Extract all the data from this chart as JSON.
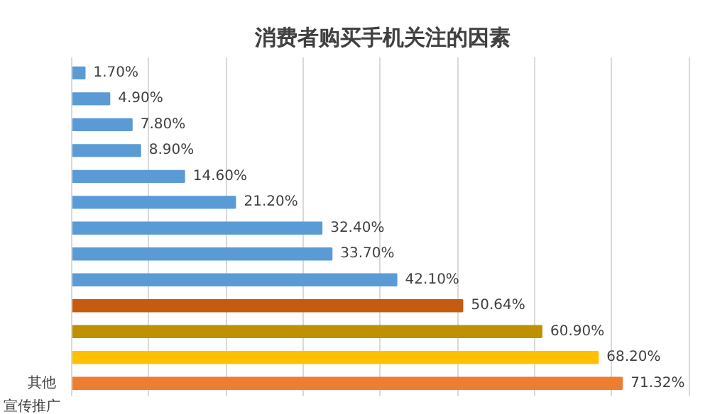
{
  "chart_data": {
    "type": "bar",
    "orientation": "horizontal",
    "title": "消费者购买手机关注的因素",
    "categories": [
      null,
      null,
      null,
      null,
      null,
      null,
      null,
      null,
      null,
      null,
      null,
      null,
      "其他"
    ],
    "values": [
      1.7,
      4.9,
      7.8,
      8.9,
      14.6,
      21.2,
      32.4,
      33.7,
      42.1,
      50.64,
      60.9,
      68.2,
      71.32
    ],
    "value_labels": [
      "1.70%",
      "4.90%",
      "7.80%",
      "8.90%",
      "14.60%",
      "21.20%",
      "32.40%",
      "33.70%",
      "42.10%",
      "50.64%",
      "60.90%",
      "68.20%",
      "71.32%"
    ],
    "colors": [
      "#5b9bd5",
      "#5b9bd5",
      "#5b9bd5",
      "#5b9bd5",
      "#5b9bd5",
      "#5b9bd5",
      "#5b9bd5",
      "#5b9bd5",
      "#5b9bd5",
      "#c55a11",
      "#bf9000",
      "#ffc000",
      "#ed7d31"
    ],
    "tick_labels": "y",
    "grid": "x",
    "data_labels": false,
    "annotations": [
      "宣传推广"
    ]
  }
}
